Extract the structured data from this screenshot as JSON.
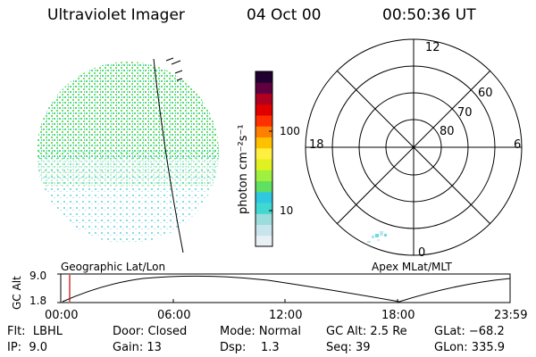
{
  "header": {
    "instrument": "Ultraviolet Imager",
    "date": "04 Oct 00",
    "time": "00:50:36 UT"
  },
  "colorbar": {
    "label": "photon cm⁻²s⁻¹",
    "ticks": [
      "100",
      "10"
    ],
    "colors": [
      "#e8f0f4",
      "#c8e4ec",
      "#9cdcdc",
      "#40d8d0",
      "#30c8e0",
      "#60e060",
      "#a0f040",
      "#e0f020",
      "#fff040",
      "#ffc000",
      "#ff8000",
      "#ff3000",
      "#e00000",
      "#b00020",
      "#600040",
      "#200030"
    ]
  },
  "polar": {
    "mlt_labels": [
      "12",
      "18",
      "6",
      "0"
    ],
    "lat_labels": [
      "60",
      "70",
      "80"
    ]
  },
  "panel_labels": {
    "left": "Geographic Lat/Lon",
    "right": "Apex MLat/MLT"
  },
  "alt_plot": {
    "ylabel": "GC Alt",
    "yticks": [
      "9.0",
      "1.8"
    ],
    "xticks": [
      "00:00",
      "06:00",
      "12:00",
      "18:00",
      "23:59"
    ],
    "marker_color": "#cc0000"
  },
  "footer": {
    "flt": "Flt:  LBHL",
    "ip": "IP:  9.0",
    "door": "Door: Closed",
    "gain": "Gain: 13",
    "mode": "Mode: Normal",
    "dsp": "Dsp:    1.3",
    "gcalt": "GC Alt: 2.5 Re",
    "seq": "Seq: 39",
    "glat": "GLat: −68.2",
    "glon": "GLon: 335.9"
  }
}
